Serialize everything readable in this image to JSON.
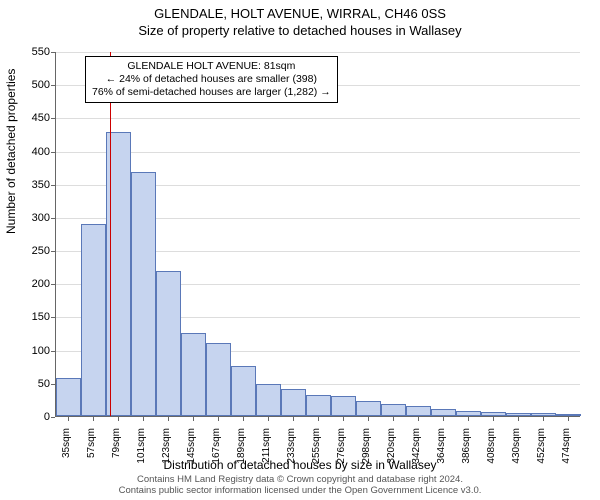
{
  "chart": {
    "type": "histogram",
    "title_main": "GLENDALE, HOLT AVENUE, WIRRAL, CH46 0SS",
    "title_sub": "Size of property relative to detached houses in Wallasey",
    "title_fontsize": 13,
    "y_axis_label": "Number of detached properties",
    "x_axis_label": "Distribution of detached houses by size in Wallasey",
    "axis_label_fontsize": 12,
    "tick_fontsize": 11,
    "ylim": [
      0,
      550
    ],
    "ytick_step": 50,
    "background_color": "#ffffff",
    "grid_color": "#dddddd",
    "bar_fill": "#c6d4ef",
    "bar_border": "#5a78b8",
    "marker_color": "#cc0000",
    "marker_x_bin_index": 2,
    "marker_position_in_bin": 0.15,
    "x_categories": [
      "35sqm",
      "57sqm",
      "79sqm",
      "101sqm",
      "123sqm",
      "145sqm",
      "167sqm",
      "189sqm",
      "211sqm",
      "233sqm",
      "255sqm",
      "276sqm",
      "298sqm",
      "320sqm",
      "342sqm",
      "364sqm",
      "386sqm",
      "408sqm",
      "430sqm",
      "452sqm",
      "474sqm"
    ],
    "bar_values": [
      58,
      290,
      428,
      368,
      218,
      125,
      110,
      75,
      48,
      40,
      32,
      30,
      22,
      18,
      15,
      10,
      8,
      6,
      5,
      4,
      3
    ],
    "annotation": {
      "line1": "GLENDALE HOLT AVENUE: 81sqm",
      "line2": "← 24% of detached houses are smaller (398)",
      "line3": "76% of semi-detached houses are larger (1,282) →"
    },
    "attribution_line1": "Contains HM Land Registry data © Crown copyright and database right 2024.",
    "attribution_line2": "Contains public sector information licensed under the Open Government Licence v3.0."
  }
}
